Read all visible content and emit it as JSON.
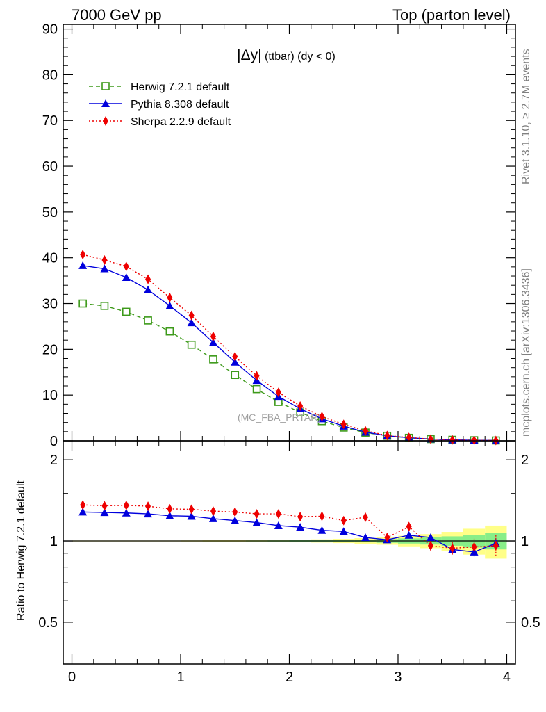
{
  "header": {
    "left": "7000 GeV pp",
    "right": "Top (parton level)"
  },
  "side_labels": {
    "rivet": "Rivet 3.1.10, ≥ 2.7M events",
    "mcplots": "mcplots.cern.ch [arXiv:1306.3436]"
  },
  "chart_data": [
    {
      "type": "line",
      "title": "|Δy| (ttbar) (dy < 0)",
      "title_main": "|Δy|",
      "title_sub": " (ttbar) (dy < 0)",
      "watermark": "(MC_FBA_PRTAR)",
      "xlim": [
        -0.08,
        4.08
      ],
      "ylim": [
        0,
        91
      ],
      "yticks": [
        0,
        10,
        20,
        30,
        40,
        50,
        60,
        70,
        80,
        90
      ],
      "legend_position": "top-left",
      "x": [
        0.1,
        0.3,
        0.5,
        0.7,
        0.9,
        1.1,
        1.3,
        1.5,
        1.7,
        1.9,
        2.1,
        2.3,
        2.5,
        2.7,
        2.9,
        3.1,
        3.3,
        3.5,
        3.7,
        3.9
      ],
      "series": [
        {
          "name": "Herwig 7.2.1 default",
          "color": "#3d9a1a",
          "marker": "open-square",
          "dash": "dashed",
          "values": [
            30.0,
            29.5,
            28.2,
            26.3,
            23.9,
            21.0,
            17.8,
            14.4,
            11.3,
            8.5,
            6.2,
            4.3,
            2.9,
            1.8,
            1.1,
            0.65,
            0.38,
            0.22,
            0.13,
            0.08
          ]
        },
        {
          "name": "Pythia 8.308 default",
          "color": "#0000dd",
          "marker": "filled-triangle",
          "dash": "solid",
          "values": [
            38.3,
            37.6,
            35.7,
            33.0,
            29.5,
            25.8,
            21.5,
            17.2,
            13.2,
            9.7,
            7.0,
            4.8,
            3.2,
            1.9,
            1.1,
            0.68,
            0.39,
            0.2,
            0.12,
            0.08
          ]
        },
        {
          "name": "Sherpa 2.2.9 default",
          "color": "#ee0000",
          "marker": "filled-diamond",
          "dash": "dotted",
          "values": [
            40.7,
            39.5,
            38.1,
            35.3,
            31.3,
            27.4,
            22.8,
            18.4,
            14.2,
            10.6,
            7.6,
            5.3,
            3.6,
            2.2,
            1.15,
            0.75,
            0.37,
            0.21,
            0.12,
            0.08
          ]
        }
      ]
    },
    {
      "type": "line",
      "ylabel": "Ratio to Herwig 7.2.1 default",
      "xlim": [
        -0.08,
        4.08
      ],
      "ylim": [
        0.35,
        2.35
      ],
      "yticks": [
        0.5,
        1,
        2
      ],
      "xticks": [
        0,
        1,
        2,
        3,
        4
      ],
      "x": [
        0.1,
        0.3,
        0.5,
        0.7,
        0.9,
        1.1,
        1.3,
        1.5,
        1.7,
        1.9,
        2.1,
        2.3,
        2.5,
        2.7,
        2.9,
        3.1,
        3.3,
        3.5,
        3.7,
        3.9
      ],
      "reference_line": 1.0,
      "band_inner_halfwidth": [
        0.002,
        0.002,
        0.002,
        0.002,
        0.002,
        0.002,
        0.003,
        0.003,
        0.004,
        0.005,
        0.006,
        0.007,
        0.009,
        0.012,
        0.016,
        0.022,
        0.03,
        0.04,
        0.055,
        0.07
      ],
      "band_outer_halfwidth": [
        0.004,
        0.004,
        0.004,
        0.004,
        0.004,
        0.005,
        0.006,
        0.007,
        0.008,
        0.01,
        0.012,
        0.014,
        0.018,
        0.024,
        0.032,
        0.045,
        0.06,
        0.08,
        0.11,
        0.14
      ],
      "series": [
        {
          "name": "Pythia 8.308 default",
          "color": "#0000dd",
          "values": [
            1.28,
            1.275,
            1.27,
            1.26,
            1.24,
            1.235,
            1.21,
            1.19,
            1.17,
            1.14,
            1.125,
            1.095,
            1.085,
            1.03,
            1.01,
            1.05,
            1.03,
            0.93,
            0.91,
            0.98
          ],
          "errors": [
            0.005,
            0.005,
            0.005,
            0.005,
            0.005,
            0.005,
            0.005,
            0.006,
            0.006,
            0.007,
            0.008,
            0.009,
            0.01,
            0.012,
            0.015,
            0.02,
            0.025,
            0.03,
            0.035,
            0.04
          ]
        },
        {
          "name": "Sherpa 2.2.9 default",
          "color": "#ee0000",
          "values": [
            1.36,
            1.35,
            1.355,
            1.345,
            1.315,
            1.31,
            1.29,
            1.28,
            1.26,
            1.26,
            1.23,
            1.235,
            1.19,
            1.225,
            1.03,
            1.13,
            0.96,
            0.94,
            0.95,
            0.96
          ],
          "errors": [
            0.005,
            0.005,
            0.005,
            0.005,
            0.005,
            0.005,
            0.006,
            0.006,
            0.007,
            0.008,
            0.01,
            0.012,
            0.014,
            0.018,
            0.02,
            0.035,
            0.04,
            0.05,
            0.07,
            0.09
          ]
        }
      ]
    }
  ]
}
